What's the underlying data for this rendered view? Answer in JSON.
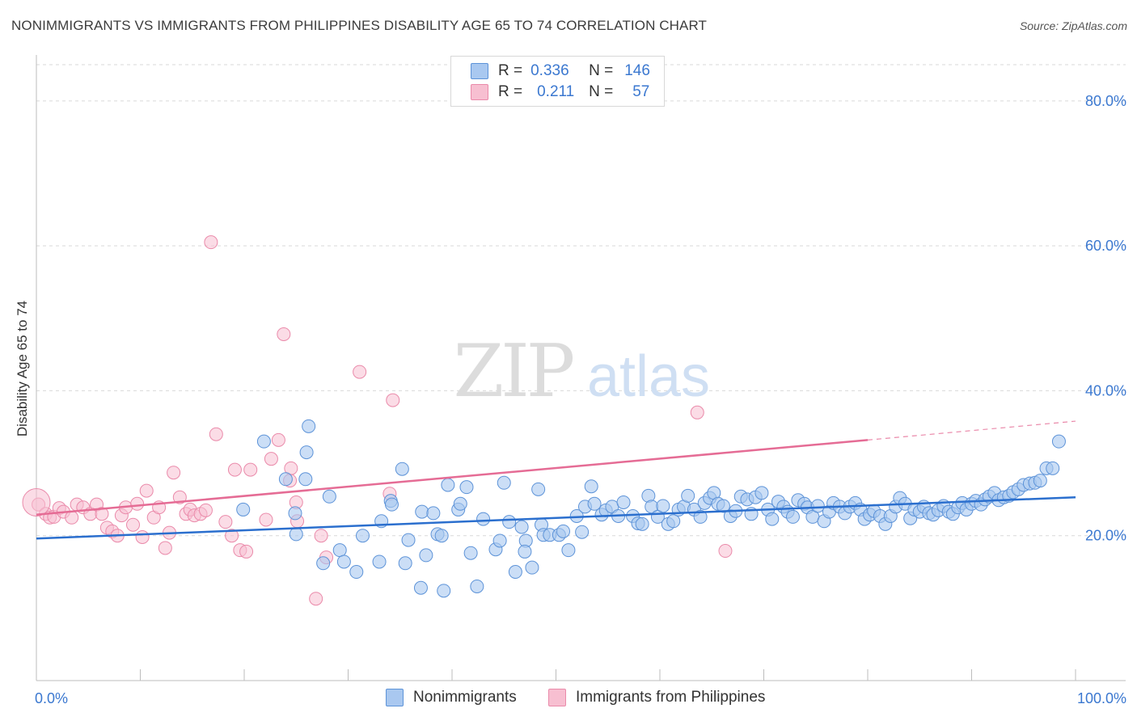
{
  "title": "NONIMMIGRANTS VS IMMIGRANTS FROM PHILIPPINES DISABILITY AGE 65 TO 74 CORRELATION CHART",
  "source": "Source: ZipAtlas.com",
  "watermark": {
    "zip": "ZIP",
    "atlas": "atlas"
  },
  "legend": {
    "r_label": "R =",
    "n_label": "N =",
    "rows": [
      {
        "r": "0.336",
        "n": "146"
      },
      {
        "r": "0.211",
        "n": "57"
      }
    ]
  },
  "colors": {
    "blue_fill": "#a9c8f0",
    "blue_stroke": "#5d93d8",
    "blue_line": "#2b6fce",
    "pink_fill": "#f7bfd1",
    "pink_stroke": "#ea8aaa",
    "pink_line": "#e56c95",
    "tick_text": "#3b78d0",
    "grid": "#d9d9d9"
  },
  "chart_data": {
    "type": "scatter",
    "xlabel": "",
    "ylabel": "Disability Age 65 to 74",
    "xlim": [
      0,
      100
    ],
    "ylim": [
      0,
      85
    ],
    "x_ticks": [
      "0.0%",
      "100.0%"
    ],
    "y_ticks": [
      {
        "value": 20,
        "label": "20.0%"
      },
      {
        "value": 40,
        "label": "40.0%"
      },
      {
        "value": 60,
        "label": "60.0%"
      },
      {
        "value": 80,
        "label": "80.0%"
      }
    ],
    "grid": true,
    "series": [
      {
        "name": "Nonimmigrants",
        "color": "#5d93d8",
        "trend": {
          "x": [
            0,
            100
          ],
          "y": [
            19.6,
            25.3
          ]
        },
        "points": [
          [
            21.9,
            33.0
          ],
          [
            26.2,
            35.1
          ],
          [
            26.0,
            31.5
          ],
          [
            24.0,
            27.8
          ],
          [
            25.9,
            27.8
          ],
          [
            24.9,
            23.1
          ],
          [
            25.0,
            20.2
          ],
          [
            27.6,
            16.2
          ],
          [
            28.2,
            25.4
          ],
          [
            29.2,
            18.0
          ],
          [
            29.6,
            16.4
          ],
          [
            30.8,
            15.0
          ],
          [
            31.4,
            20.0
          ],
          [
            33.0,
            16.4
          ],
          [
            33.2,
            22.0
          ],
          [
            34.1,
            24.8
          ],
          [
            34.2,
            24.3
          ],
          [
            35.2,
            29.2
          ],
          [
            35.5,
            16.2
          ],
          [
            35.8,
            19.4
          ],
          [
            37.0,
            12.8
          ],
          [
            37.1,
            23.3
          ],
          [
            37.5,
            17.3
          ],
          [
            38.2,
            23.1
          ],
          [
            38.6,
            20.2
          ],
          [
            39.2,
            12.4
          ],
          [
            39.6,
            27.0
          ],
          [
            40.6,
            23.6
          ],
          [
            40.8,
            24.4
          ],
          [
            41.4,
            26.7
          ],
          [
            41.8,
            17.6
          ],
          [
            42.4,
            13.0
          ],
          [
            43.0,
            22.3
          ],
          [
            44.2,
            18.1
          ],
          [
            44.6,
            19.3
          ],
          [
            45.0,
            27.3
          ],
          [
            45.5,
            21.9
          ],
          [
            46.1,
            15.0
          ],
          [
            46.7,
            21.2
          ],
          [
            47.1,
            19.3
          ],
          [
            47.7,
            15.6
          ],
          [
            48.3,
            26.4
          ],
          [
            48.6,
            21.5
          ],
          [
            48.8,
            20.1
          ],
          [
            49.4,
            20.1
          ],
          [
            50.3,
            20.1
          ],
          [
            50.7,
            20.6
          ],
          [
            51.2,
            18.0
          ],
          [
            52.0,
            22.7
          ],
          [
            52.5,
            20.5
          ],
          [
            52.8,
            24.0
          ],
          [
            53.4,
            26.8
          ],
          [
            53.7,
            24.4
          ],
          [
            54.4,
            22.9
          ],
          [
            54.8,
            23.5
          ],
          [
            55.4,
            24.0
          ],
          [
            56.0,
            22.7
          ],
          [
            56.5,
            24.6
          ],
          [
            57.4,
            22.7
          ],
          [
            57.9,
            21.7
          ],
          [
            58.3,
            21.6
          ],
          [
            58.9,
            25.5
          ],
          [
            59.2,
            24.0
          ],
          [
            59.8,
            22.6
          ],
          [
            60.3,
            24.1
          ],
          [
            60.8,
            21.6
          ],
          [
            61.3,
            22.0
          ],
          [
            61.8,
            23.6
          ],
          [
            62.3,
            24.0
          ],
          [
            62.7,
            25.5
          ],
          [
            63.3,
            23.6
          ],
          [
            63.9,
            22.6
          ],
          [
            64.3,
            24.5
          ],
          [
            64.8,
            25.2
          ],
          [
            65.2,
            25.9
          ],
          [
            65.6,
            24.4
          ],
          [
            66.1,
            24.1
          ],
          [
            66.8,
            22.7
          ],
          [
            67.3,
            23.4
          ],
          [
            67.8,
            25.4
          ],
          [
            68.4,
            25.0
          ],
          [
            68.8,
            23.0
          ],
          [
            69.2,
            25.3
          ],
          [
            69.8,
            25.9
          ],
          [
            70.4,
            23.6
          ],
          [
            70.8,
            22.3
          ],
          [
            71.4,
            24.7
          ],
          [
            71.9,
            24.0
          ],
          [
            72.3,
            23.3
          ],
          [
            72.8,
            22.6
          ],
          [
            73.3,
            24.9
          ],
          [
            73.9,
            24.4
          ],
          [
            74.2,
            23.9
          ],
          [
            74.7,
            22.6
          ],
          [
            75.2,
            24.1
          ],
          [
            75.8,
            22.0
          ],
          [
            76.3,
            23.3
          ],
          [
            76.7,
            24.5
          ],
          [
            77.3,
            24.0
          ],
          [
            77.8,
            23.1
          ],
          [
            78.3,
            24.0
          ],
          [
            78.8,
            24.5
          ],
          [
            79.3,
            23.6
          ],
          [
            79.7,
            22.3
          ],
          [
            80.2,
            22.9
          ],
          [
            80.6,
            23.4
          ],
          [
            81.2,
            22.7
          ],
          [
            81.7,
            21.6
          ],
          [
            82.2,
            22.7
          ],
          [
            82.7,
            24.0
          ],
          [
            83.1,
            25.2
          ],
          [
            83.6,
            24.4
          ],
          [
            84.1,
            22.4
          ],
          [
            84.5,
            23.6
          ],
          [
            85.0,
            23.3
          ],
          [
            85.4,
            24.0
          ],
          [
            85.9,
            23.1
          ],
          [
            86.3,
            22.9
          ],
          [
            86.8,
            23.5
          ],
          [
            87.3,
            24.1
          ],
          [
            87.8,
            23.3
          ],
          [
            88.2,
            23.0
          ],
          [
            88.7,
            23.9
          ],
          [
            89.1,
            24.5
          ],
          [
            89.5,
            23.6
          ],
          [
            90.0,
            24.4
          ],
          [
            90.4,
            24.8
          ],
          [
            90.9,
            24.3
          ],
          [
            91.3,
            25.0
          ],
          [
            91.7,
            25.4
          ],
          [
            92.2,
            25.9
          ],
          [
            92.6,
            24.9
          ],
          [
            93.1,
            25.3
          ],
          [
            93.6,
            25.5
          ],
          [
            94.0,
            26.0
          ],
          [
            94.5,
            26.4
          ],
          [
            95.0,
            27.0
          ],
          [
            95.6,
            27.2
          ],
          [
            96.1,
            27.3
          ],
          [
            96.6,
            27.6
          ],
          [
            97.2,
            29.3
          ],
          [
            97.8,
            29.3
          ],
          [
            98.4,
            33.0
          ],
          [
            19.9,
            23.6
          ],
          [
            39.0,
            20.0
          ],
          [
            47.0,
            17.8
          ]
        ]
      },
      {
        "name": "Immigrants from Philippines",
        "color": "#ea8aaa",
        "trend": {
          "x": [
            0,
            80
          ],
          "y": [
            22.9,
            33.2
          ]
        },
        "trend_dashed": {
          "x": [
            80,
            100
          ],
          "y": [
            33.2,
            35.8
          ]
        },
        "points": [
          [
            0.2,
            24.3
          ],
          [
            0.9,
            23.0
          ],
          [
            1.3,
            22.5
          ],
          [
            1.7,
            22.6
          ],
          [
            2.2,
            23.8
          ],
          [
            2.6,
            23.3
          ],
          [
            3.4,
            22.5
          ],
          [
            3.9,
            24.3
          ],
          [
            4.5,
            23.9
          ],
          [
            5.2,
            23.0
          ],
          [
            5.8,
            24.3
          ],
          [
            6.3,
            23.0
          ],
          [
            6.8,
            21.1
          ],
          [
            7.3,
            20.6
          ],
          [
            7.8,
            20.0
          ],
          [
            8.2,
            22.8
          ],
          [
            8.6,
            23.9
          ],
          [
            9.3,
            21.5
          ],
          [
            9.7,
            24.4
          ],
          [
            10.2,
            19.8
          ],
          [
            10.6,
            26.2
          ],
          [
            11.3,
            22.5
          ],
          [
            11.8,
            23.9
          ],
          [
            12.4,
            18.3
          ],
          [
            12.8,
            20.4
          ],
          [
            13.2,
            28.7
          ],
          [
            13.8,
            25.3
          ],
          [
            14.4,
            23.0
          ],
          [
            14.8,
            23.6
          ],
          [
            15.2,
            22.8
          ],
          [
            15.8,
            23.0
          ],
          [
            16.3,
            23.5
          ],
          [
            16.8,
            60.5
          ],
          [
            17.3,
            34.0
          ],
          [
            18.2,
            21.9
          ],
          [
            18.8,
            20.0
          ],
          [
            19.1,
            29.1
          ],
          [
            19.6,
            18.0
          ],
          [
            20.2,
            17.8
          ],
          [
            20.6,
            29.1
          ],
          [
            22.1,
            22.2
          ],
          [
            22.6,
            30.6
          ],
          [
            23.3,
            33.2
          ],
          [
            23.8,
            47.8
          ],
          [
            24.4,
            27.6
          ],
          [
            25.0,
            24.6
          ],
          [
            24.5,
            29.3
          ],
          [
            25.1,
            22.0
          ],
          [
            26.9,
            11.3
          ],
          [
            27.4,
            20.0
          ],
          [
            27.9,
            17.0
          ],
          [
            31.1,
            42.6
          ],
          [
            34.3,
            38.7
          ],
          [
            34.0,
            25.8
          ],
          [
            63.6,
            37.0
          ],
          [
            66.3,
            17.9
          ],
          [
            0.0,
            24.6
          ]
        ]
      }
    ]
  },
  "bottom_legend": [
    "Nonimmigrants",
    "Immigrants from Philippines"
  ]
}
